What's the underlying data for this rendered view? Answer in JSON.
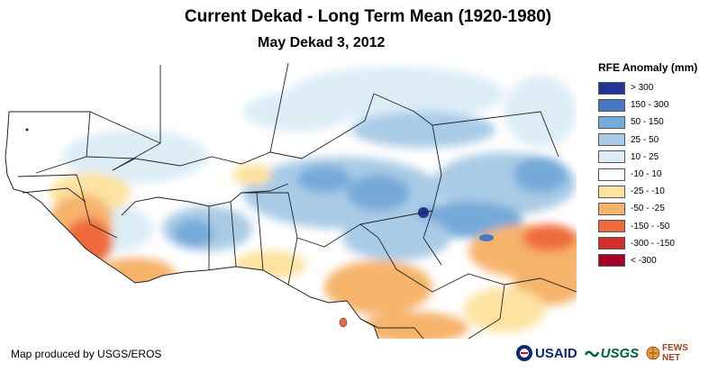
{
  "header": {
    "title": "Current Dekad - Long Term Mean (1920-1980)",
    "subtitle": "May Dekad 3, 2012"
  },
  "legend": {
    "title": "RFE Anomaly (mm)",
    "items": [
      {
        "label": "> 300",
        "color": "#253494"
      },
      {
        "label": "150 - 300",
        "color": "#4a78c0"
      },
      {
        "label": "50 - 150",
        "color": "#74a9d8"
      },
      {
        "label": "25 - 50",
        "color": "#a9cbe6"
      },
      {
        "label": "10 - 25",
        "color": "#dcedf6"
      },
      {
        "label": "-10 - 10",
        "color": "#ffffff"
      },
      {
        "label": "-25 - -10",
        "color": "#fde2a0"
      },
      {
        "label": "-50 - -25",
        "color": "#f6b36a"
      },
      {
        "label": "-150 - -50",
        "color": "#ee6a3c"
      },
      {
        "label": "-300 - -150",
        "color": "#d0302a"
      },
      {
        "label": "< -300",
        "color": "#a40028"
      }
    ]
  },
  "footer": {
    "credit": "Map produced by USGS/EROS",
    "logos": {
      "usaid": "USAID",
      "usgs": "USGS",
      "fews": "FEWS NET"
    }
  },
  "map": {
    "region": "West Africa",
    "colors": {
      "ocean": "#ffffff",
      "border": "#222222"
    }
  }
}
